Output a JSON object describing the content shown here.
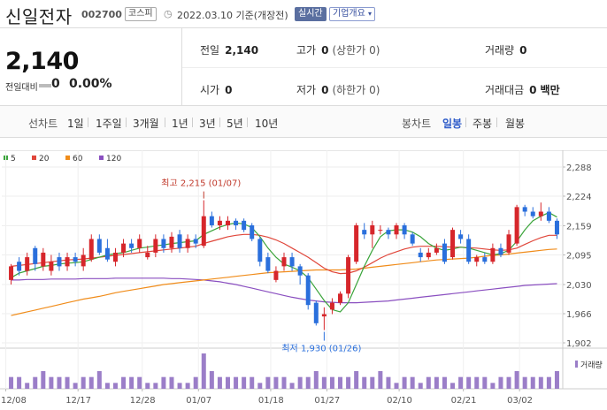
{
  "header": {
    "name": "신일전자",
    "code": "002700",
    "market": "코스피",
    "date": "2022.03.10",
    "basis": "기준(개장전)",
    "live_label": "실시간",
    "info_label": "기업개요"
  },
  "summary": {
    "price": "2,140",
    "change_label": "전일대비",
    "change_value": "0",
    "change_pct": "0.00%",
    "prev_label": "전일",
    "prev_value": "2,140",
    "high_label": "고가",
    "high_value": "0",
    "high_sub": "(상한가 0)",
    "volume_label": "거래량",
    "volume_value": "0",
    "open_label": "시가",
    "open_value": "0",
    "low_label": "저가",
    "low_value": "0",
    "low_sub": "(하한가 0)",
    "amount_label": "거래대금",
    "amount_value": "0",
    "amount_unit": "백만"
  },
  "tabs": {
    "period_label": "선차트",
    "periods": [
      "1일",
      "1주일",
      "3개월",
      "1년",
      "3년",
      "5년",
      "10년"
    ],
    "candle_label": "봉차트",
    "candles": [
      "일봉",
      "주봉",
      "월봉"
    ],
    "active_candle": "일봉"
  },
  "chart_data": {
    "type": "candlestick",
    "ma_legend": [
      {
        "name": "5",
        "color": "#3aa43a"
      },
      {
        "name": "20",
        "color": "#e0463a"
      },
      {
        "name": "60",
        "color": "#f08c1a"
      },
      {
        "name": "120",
        "color": "#8a4fc0"
      }
    ],
    "y_ticks": [
      "2,288",
      "2,224",
      "2,159",
      "2,095",
      "2,030",
      "1,966",
      "1,902"
    ],
    "ylim": [
      1902,
      2288
    ],
    "x_ticks": [
      "12/08",
      "12/17",
      "12/28",
      "01/07",
      "01/18",
      "01/27",
      "02/10",
      "02/21",
      "03/02"
    ],
    "high_annotation": "최고 2,215 (01/07)",
    "low_annotation": "최저 1,930 (01/26)",
    "volume_label": "거래량",
    "up_color": "#d6262b",
    "down_color": "#2a6fdc",
    "candles": [
      [
        2040,
        2070,
        2030,
        2075
      ],
      [
        2080,
        2060,
        2050,
        2090
      ],
      [
        2060,
        2090,
        2050,
        2100
      ],
      [
        2110,
        2075,
        2060,
        2115
      ],
      [
        2070,
        2100,
        2060,
        2110
      ],
      [
        2060,
        2080,
        2050,
        2095
      ],
      [
        2090,
        2070,
        2060,
        2100
      ],
      [
        2070,
        2090,
        2060,
        2100
      ],
      [
        2090,
        2080,
        2070,
        2100
      ],
      [
        2070,
        2095,
        2060,
        2110
      ],
      [
        2085,
        2130,
        2080,
        2140
      ],
      [
        2130,
        2100,
        2095,
        2140
      ],
      [
        2110,
        2085,
        2080,
        2130
      ],
      [
        2080,
        2100,
        2070,
        2110
      ],
      [
        2100,
        2120,
        2090,
        2130
      ],
      [
        2120,
        2110,
        2100,
        2130
      ],
      [
        2110,
        2130,
        2100,
        2140
      ],
      [
        2090,
        2100,
        2085,
        2115
      ],
      [
        2100,
        2130,
        2090,
        2140
      ],
      [
        2130,
        2110,
        2100,
        2140
      ],
      [
        2110,
        2135,
        2100,
        2145
      ],
      [
        2140,
        2110,
        2100,
        2150
      ],
      [
        2110,
        2130,
        2100,
        2140
      ],
      [
        2130,
        2120,
        2110,
        2140
      ],
      [
        2115,
        2180,
        2110,
        2215
      ],
      [
        2180,
        2160,
        2155,
        2190
      ],
      [
        2160,
        2170,
        2150,
        2180
      ],
      [
        2160,
        2170,
        2150,
        2180
      ],
      [
        2170,
        2160,
        2150,
        2175
      ],
      [
        2170,
        2150,
        2145,
        2175
      ],
      [
        2160,
        2130,
        2125,
        2165
      ],
      [
        2130,
        2080,
        2070,
        2135
      ],
      [
        2090,
        2060,
        2055,
        2100
      ],
      [
        2040,
        2060,
        2035,
        2070
      ],
      [
        2070,
        2090,
        2060,
        2100
      ],
      [
        2090,
        2070,
        2060,
        2100
      ],
      [
        2070,
        2050,
        2030,
        2075
      ],
      [
        2050,
        1985,
        1975,
        2055
      ],
      [
        1990,
        1945,
        1940,
        1995
      ],
      [
        1960,
        1965,
        1930,
        1980
      ],
      [
        1975,
        1990,
        1965,
        2000
      ],
      [
        1990,
        2010,
        1985,
        2015
      ],
      [
        2010,
        2090,
        2000,
        2095
      ],
      [
        2080,
        2160,
        2075,
        2165
      ],
      [
        2150,
        2140,
        2130,
        2165
      ],
      [
        2140,
        2160,
        2110,
        2170
      ],
      [
        2150,
        2150,
        2140,
        2160
      ],
      [
        2150,
        2140,
        2130,
        2155
      ],
      [
        2140,
        2160,
        2130,
        2165
      ],
      [
        2160,
        2140,
        2130,
        2165
      ],
      [
        2140,
        2120,
        2115,
        2145
      ],
      [
        2100,
        2090,
        2080,
        2110
      ],
      [
        2090,
        2100,
        2085,
        2110
      ],
      [
        2100,
        2110,
        2095,
        2120
      ],
      [
        2120,
        2080,
        2075,
        2130
      ],
      [
        2090,
        2150,
        2085,
        2155
      ],
      [
        2140,
        2130,
        2120,
        2150
      ],
      [
        2130,
        2080,
        2075,
        2140
      ],
      [
        2080,
        2090,
        2070,
        2095
      ],
      [
        2090,
        2080,
        2075,
        2100
      ],
      [
        2080,
        2110,
        2075,
        2120
      ],
      [
        2110,
        2095,
        2090,
        2120
      ],
      [
        2100,
        2140,
        2095,
        2150
      ],
      [
        2120,
        2200,
        2115,
        2205
      ],
      [
        2200,
        2190,
        2180,
        2205
      ],
      [
        2190,
        2180,
        2175,
        2200
      ],
      [
        2180,
        2190,
        2170,
        2210
      ],
      [
        2190,
        2170,
        2165,
        2200
      ],
      [
        2170,
        2140,
        2130,
        2175
      ]
    ],
    "ma5": [
      2045,
      2055,
      2060,
      2065,
      2070,
      2072,
      2075,
      2077,
      2078,
      2080,
      2085,
      2090,
      2095,
      2098,
      2100,
      2105,
      2110,
      2112,
      2115,
      2117,
      2120,
      2122,
      2124,
      2126,
      2140,
      2148,
      2156,
      2162,
      2165,
      2163,
      2155,
      2135,
      2110,
      2090,
      2075,
      2068,
      2060,
      2045,
      2020,
      1995,
      1975,
      1970,
      1990,
      2030,
      2070,
      2105,
      2135,
      2148,
      2150,
      2150,
      2145,
      2135,
      2120,
      2110,
      2105,
      2108,
      2112,
      2110,
      2105,
      2100,
      2095,
      2098,
      2105,
      2125,
      2150,
      2170,
      2180,
      2188,
      2178
    ],
    "ma20": [
      2070,
      2072,
      2074,
      2076,
      2078,
      2080,
      2082,
      2084,
      2085,
      2086,
      2088,
      2090,
      2092,
      2094,
      2096,
      2098,
      2100,
      2102,
      2104,
      2106,
      2108,
      2110,
      2112,
      2114,
      2120,
      2125,
      2130,
      2135,
      2138,
      2140,
      2140,
      2138,
      2134,
      2128,
      2120,
      2110,
      2100,
      2090,
      2078,
      2066,
      2058,
      2054,
      2055,
      2060,
      2068,
      2078,
      2088,
      2096,
      2102,
      2108,
      2112,
      2114,
      2114,
      2114,
      2113,
      2112,
      2112,
      2111,
      2110,
      2108,
      2106,
      2105,
      2106,
      2110,
      2118,
      2126,
      2133,
      2138,
      2138
    ],
    "ma60": [
      1962,
      1966,
      1970,
      1974,
      1978,
      1982,
      1986,
      1990,
      1994,
      1998,
      2001,
      2004,
      2008,
      2012,
      2015,
      2018,
      2021,
      2024,
      2027,
      2030,
      2032,
      2034,
      2036,
      2038,
      2040,
      2042,
      2044,
      2046,
      2048,
      2050,
      2052,
      2054,
      2056,
      2057,
      2058,
      2059,
      2060,
      2061,
      2062,
      2062,
      2062,
      2062,
      2063,
      2064,
      2066,
      2068,
      2070,
      2072,
      2074,
      2076,
      2078,
      2080,
      2082,
      2084,
      2085,
      2086,
      2087,
      2088,
      2090,
      2092,
      2094,
      2095,
      2097,
      2099,
      2101,
      2103,
      2105,
      2107,
      2108
    ],
    "ma120": [
      2040,
      2040,
      2041,
      2041,
      2041,
      2042,
      2042,
      2042,
      2042,
      2043,
      2043,
      2043,
      2043,
      2044,
      2044,
      2044,
      2044,
      2044,
      2044,
      2044,
      2043,
      2043,
      2042,
      2041,
      2040,
      2038,
      2036,
      2033,
      2030,
      2026,
      2022,
      2018,
      2014,
      2010,
      2006,
      2002,
      1999,
      1996,
      1994,
      1992,
      1991,
      1990,
      1990,
      1990,
      1991,
      1992,
      1993,
      1994,
      1996,
      1998,
      2000,
      2002,
      2004,
      2006,
      2008,
      2010,
      2012,
      2014,
      2016,
      2018,
      2020,
      2022,
      2024,
      2026,
      2028,
      2029,
      2030,
      2031,
      2032
    ],
    "volumes": [
      2,
      2,
      1,
      2,
      3,
      2,
      2,
      2,
      1,
      2,
      2,
      3,
      1,
      1,
      2,
      2,
      2,
      1,
      1,
      2,
      2,
      1,
      1,
      2,
      6,
      3,
      2,
      2,
      2,
      2,
      2,
      1,
      2,
      2,
      2,
      1,
      2,
      2,
      3,
      2,
      2,
      2,
      2,
      3,
      2,
      2,
      3,
      2,
      1,
      2,
      2,
      1,
      2,
      2,
      2,
      1,
      2,
      2,
      2,
      2,
      1,
      2,
      2,
      3,
      2,
      2,
      2,
      2,
      3
    ]
  }
}
